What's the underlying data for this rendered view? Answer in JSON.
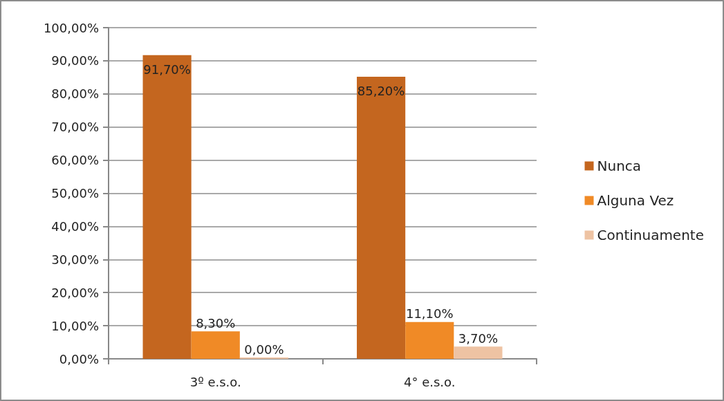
{
  "chart_data": {
    "type": "bar",
    "categories": [
      "3º e.s.o.",
      "4° e.s.o."
    ],
    "series": [
      {
        "name": "Nunca",
        "color": "#c4661f",
        "values": [
          91.7,
          85.2
        ],
        "value_labels": [
          "91,70%",
          "85,20%"
        ]
      },
      {
        "name": "Alguna Vez",
        "color": "#f08a26",
        "values": [
          8.3,
          11.1
        ],
        "value_labels": [
          "8,30%",
          "11,10%"
        ]
      },
      {
        "name": "Continuamente",
        "color": "#eec3a3",
        "values": [
          0.0,
          3.7
        ],
        "value_labels": [
          "0,00%",
          "3,70%"
        ]
      }
    ],
    "ylim": [
      0,
      100
    ],
    "yticks": [
      {
        "value": 0,
        "label": "0,00%"
      },
      {
        "value": 10,
        "label": "10,00%"
      },
      {
        "value": 20,
        "label": "20,00%"
      },
      {
        "value": 30,
        "label": "30,00%"
      },
      {
        "value": 40,
        "label": "40,00%"
      },
      {
        "value": 50,
        "label": "50,00%"
      },
      {
        "value": 60,
        "label": "60,00%"
      },
      {
        "value": 70,
        "label": "70,00%"
      },
      {
        "value": 80,
        "label": "80,00%"
      },
      {
        "value": 90,
        "label": "90,00%"
      },
      {
        "value": 100,
        "label": "100,00%"
      }
    ],
    "grid": "y",
    "legend": "right"
  }
}
